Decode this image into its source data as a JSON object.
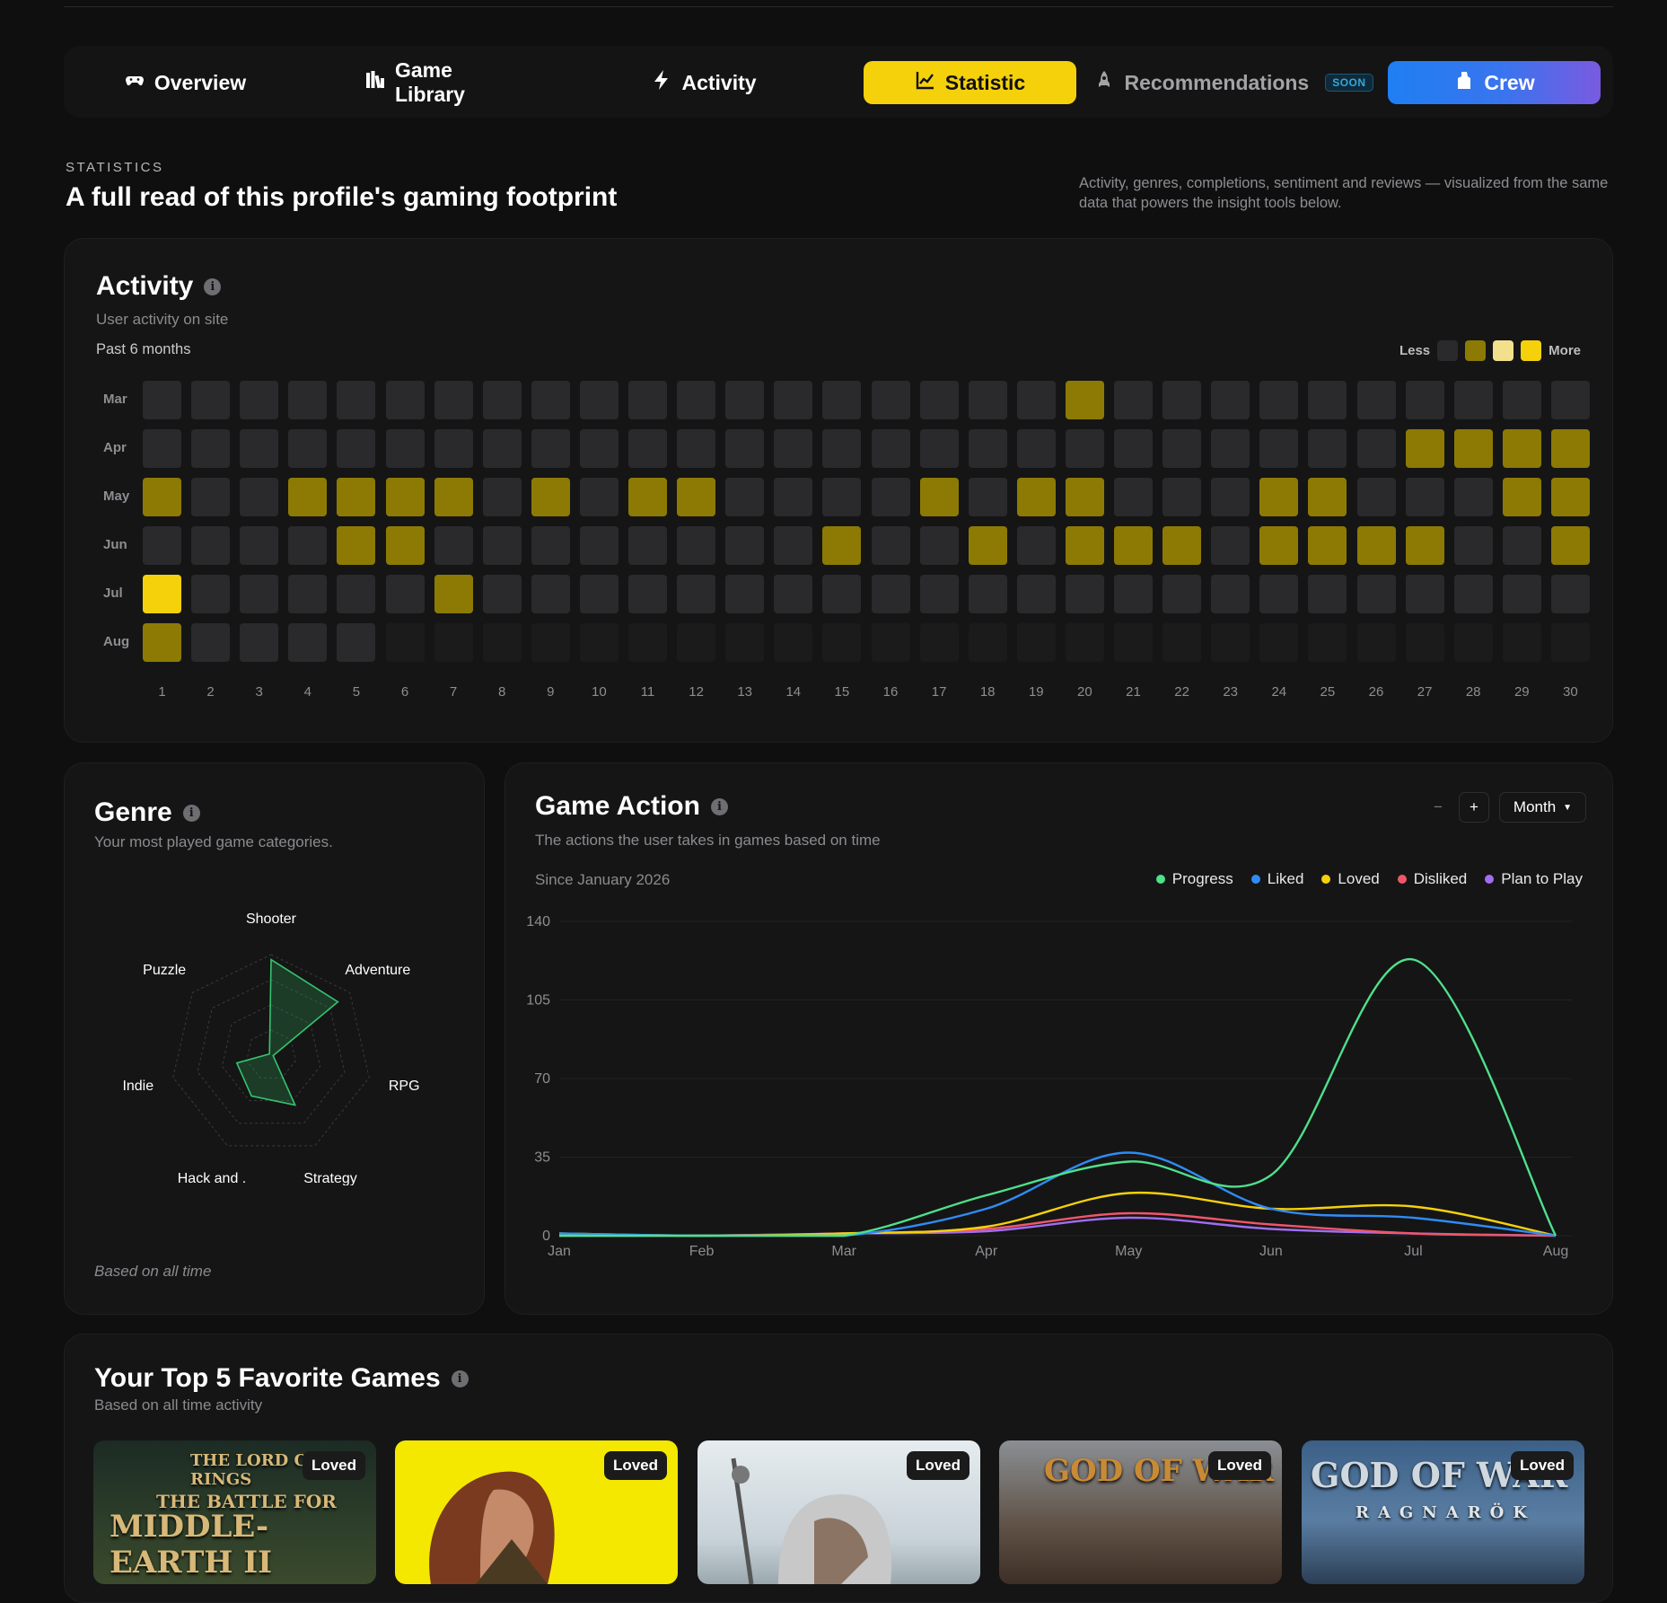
{
  "nav": {
    "overview": "Overview",
    "game_library": "Game Library",
    "activity": "Activity",
    "statistic": "Statistic",
    "recommendations": "Recommendations",
    "soon_badge": "SOON",
    "crew": "Crew",
    "active_tab": "Statistic",
    "accent_color": "#f5d10b"
  },
  "header": {
    "eyebrow": "STATISTICS",
    "title": "A full read of this profile's gaming footprint",
    "description": "Activity, genres, completions, sentiment and reviews — visualized from the same data that powers the insight tools below."
  },
  "activity": {
    "title": "Activity",
    "subtitle": "User activity on site",
    "period": "Past 6 months",
    "legend_less": "Less",
    "legend_more": "More",
    "legend_colors": [
      "#2a2a2c",
      "#8c7a05",
      "#f3e08c",
      "#f5d10b"
    ],
    "months": [
      "Mar",
      "Apr",
      "May",
      "Jun",
      "Jul",
      "Aug"
    ],
    "days": [
      "1",
      "2",
      "3",
      "4",
      "5",
      "6",
      "7",
      "8",
      "9",
      "10",
      "11",
      "12",
      "13",
      "14",
      "15",
      "16",
      "17",
      "18",
      "19",
      "20",
      "21",
      "22",
      "23",
      "24",
      "25",
      "26",
      "27",
      "28",
      "29",
      "30"
    ],
    "levels": [
      [
        0,
        0,
        0,
        0,
        0,
        0,
        0,
        0,
        0,
        0,
        0,
        0,
        0,
        0,
        0,
        0,
        0,
        0,
        0,
        1,
        0,
        0,
        0,
        0,
        0,
        0,
        0,
        0,
        0,
        0
      ],
      [
        0,
        0,
        0,
        0,
        0,
        0,
        0,
        0,
        0,
        0,
        0,
        0,
        0,
        0,
        0,
        0,
        0,
        0,
        0,
        0,
        0,
        0,
        0,
        0,
        0,
        0,
        1,
        1,
        1,
        1
      ],
      [
        1,
        0,
        0,
        1,
        1,
        1,
        1,
        0,
        1,
        0,
        1,
        1,
        0,
        0,
        0,
        0,
        1,
        0,
        1,
        1,
        0,
        0,
        0,
        1,
        1,
        0,
        0,
        0,
        1,
        1
      ],
      [
        0,
        0,
        0,
        0,
        1,
        1,
        0,
        0,
        0,
        0,
        0,
        0,
        0,
        0,
        1,
        0,
        0,
        1,
        0,
        1,
        1,
        1,
        0,
        1,
        1,
        1,
        1,
        0,
        0,
        1
      ],
      [
        3,
        0,
        0,
        0,
        0,
        0,
        1,
        0,
        0,
        0,
        0,
        0,
        0,
        0,
        0,
        0,
        0,
        0,
        0,
        0,
        0,
        0,
        0,
        0,
        0,
        0,
        0,
        0,
        0,
        0
      ],
      [
        1,
        0,
        0,
        0,
        0,
        -1,
        -1,
        -1,
        -1,
        -1,
        -1,
        -1,
        -1,
        -1,
        -1,
        -1,
        -1,
        -1,
        -1,
        -1,
        -1,
        -1,
        -1,
        -1,
        -1,
        -1,
        -1,
        -1,
        -1,
        -1
      ]
    ]
  },
  "genre": {
    "title": "Genre",
    "subtitle": "Your most played game categories.",
    "footer": "Based on all time",
    "categories": [
      "Shooter",
      "Adventure",
      "RPG",
      "Strategy",
      "Hack and .",
      "Indie",
      "Puzzle"
    ],
    "values": [
      0.95,
      0.85,
      0.0,
      0.55,
      0.45,
      0.35,
      0.0
    ]
  },
  "game_action": {
    "title": "Game Action",
    "subtitle": "The actions the user takes in games based on time",
    "since": "Since January 2026",
    "zoom_out": "−",
    "zoom_in": "+",
    "period_select": "Month",
    "chart_data": {
      "type": "line",
      "x": [
        "Jan",
        "Feb",
        "Mar",
        "Apr",
        "May",
        "Jun",
        "Jul",
        "Aug"
      ],
      "ylim": [
        0,
        140
      ],
      "yticks": [
        0,
        35,
        70,
        105,
        140
      ],
      "series": [
        {
          "name": "Progress",
          "color": "#4fe08a",
          "values": [
            0,
            0,
            0,
            18,
            33,
            27,
            123,
            0
          ]
        },
        {
          "name": "Liked",
          "color": "#2f8cf3",
          "values": [
            1,
            0,
            0,
            12,
            37,
            12,
            8,
            0
          ]
        },
        {
          "name": "Loved",
          "color": "#f5d10b",
          "values": [
            1,
            0,
            1,
            4,
            19,
            12,
            13,
            0
          ]
        },
        {
          "name": "Disliked",
          "color": "#f0566a",
          "values": [
            0,
            0,
            1,
            3,
            10,
            5,
            1,
            0
          ]
        },
        {
          "name": "Plan to Play",
          "color": "#a06ef0",
          "values": [
            0,
            0,
            1,
            2,
            8,
            3,
            1,
            0
          ]
        }
      ]
    }
  },
  "top_games": {
    "title": "Your Top 5 Favorite Games",
    "subtitle": "Based on all time activity",
    "items": [
      {
        "badge": "Loved",
        "logo_line1": "THE LORD OF THE RINGS",
        "logo_line2": "THE BATTLE FOR",
        "logo_line3": "MIDDLE-EARTH II"
      },
      {
        "badge": "Loved"
      },
      {
        "badge": "Loved"
      },
      {
        "badge": "Loved",
        "logo_line1": "GOD OF WAR"
      },
      {
        "badge": "Loved",
        "logo_line1": "GOD OF WAR",
        "logo_line2": "RAGNARÖK"
      }
    ]
  }
}
